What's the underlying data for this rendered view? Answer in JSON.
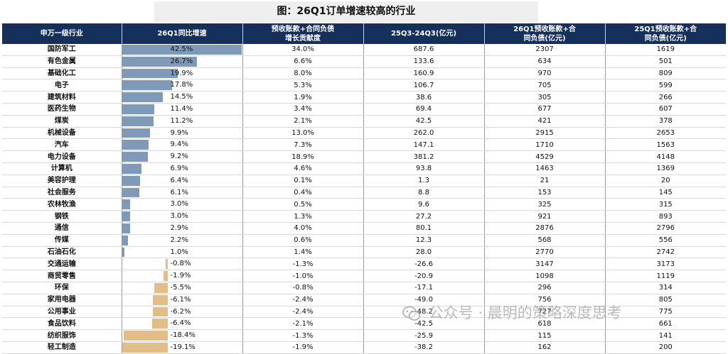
{
  "title": "图：26Q1订单增速较高的行业",
  "columns": [
    "申万一级行业",
    "26Q1同比增速",
    "预收账款+合同负债\n增长贡献度",
    "25Q3-24Q3(亿元)",
    "26Q1预收账款+合\n同负债(亿元)",
    "25Q1预收账款+合\n同负债(亿元)"
  ],
  "watermark": "公众号 · 晨明的策略深度思考",
  "colors": {
    "header_bg": "#15305a",
    "positive_bar": "#7f99b8",
    "negative_bar": "#e3bd87"
  },
  "chart_data": {
    "type": "table",
    "title": "图：26Q1订单增速较高的行业",
    "bar_column": "26Q1同比增速",
    "bar_range": [
      -19.1,
      42.5
    ],
    "rows": [
      {
        "industry": "国防军工",
        "growth": "42.5%",
        "growth_value": 42.5,
        "contribution": "34.0%",
        "diff": "687.6",
        "q1_26": "2307",
        "q1_25": "1619"
      },
      {
        "industry": "有色金属",
        "growth": "26.7%",
        "growth_value": 26.7,
        "contribution": "6.6%",
        "diff": "133.6",
        "q1_26": "634",
        "q1_25": "501"
      },
      {
        "industry": "基础化工",
        "growth": "19.9%",
        "growth_value": 19.9,
        "contribution": "8.0%",
        "diff": "160.9",
        "q1_26": "970",
        "q1_25": "809"
      },
      {
        "industry": "电子",
        "growth": "17.8%",
        "growth_value": 17.8,
        "contribution": "5.3%",
        "diff": "106.7",
        "q1_26": "705",
        "q1_25": "599"
      },
      {
        "industry": "建筑材料",
        "growth": "14.5%",
        "growth_value": 14.5,
        "contribution": "1.9%",
        "diff": "38.6",
        "q1_26": "305",
        "q1_25": "266"
      },
      {
        "industry": "医药生物",
        "growth": "11.4%",
        "growth_value": 11.4,
        "contribution": "3.4%",
        "diff": "69.4",
        "q1_26": "677",
        "q1_25": "607"
      },
      {
        "industry": "煤炭",
        "growth": "11.2%",
        "growth_value": 11.2,
        "contribution": "2.1%",
        "diff": "42.5",
        "q1_26": "421",
        "q1_25": "378"
      },
      {
        "industry": "机械设备",
        "growth": "9.9%",
        "growth_value": 9.9,
        "contribution": "13.0%",
        "diff": "262.0",
        "q1_26": "2915",
        "q1_25": "2653"
      },
      {
        "industry": "汽车",
        "growth": "9.4%",
        "growth_value": 9.4,
        "contribution": "7.3%",
        "diff": "147.1",
        "q1_26": "1710",
        "q1_25": "1563"
      },
      {
        "industry": "电力设备",
        "growth": "9.2%",
        "growth_value": 9.2,
        "contribution": "18.9%",
        "diff": "381.2",
        "q1_26": "4529",
        "q1_25": "4148"
      },
      {
        "industry": "计算机",
        "growth": "6.9%",
        "growth_value": 6.9,
        "contribution": "4.6%",
        "diff": "93.8",
        "q1_26": "1463",
        "q1_25": "1369"
      },
      {
        "industry": "美容护理",
        "growth": "6.4%",
        "growth_value": 6.4,
        "contribution": "0.1%",
        "diff": "1.3",
        "q1_26": "21",
        "q1_25": "20"
      },
      {
        "industry": "社会服务",
        "growth": "6.1%",
        "growth_value": 6.1,
        "contribution": "0.4%",
        "diff": "8.8",
        "q1_26": "153",
        "q1_25": "145"
      },
      {
        "industry": "农林牧渔",
        "growth": "3.0%",
        "growth_value": 3.0,
        "contribution": "0.5%",
        "diff": "9.6",
        "q1_26": "325",
        "q1_25": "315"
      },
      {
        "industry": "钢铁",
        "growth": "3.0%",
        "growth_value": 3.0,
        "contribution": "1.3%",
        "diff": "27.2",
        "q1_26": "921",
        "q1_25": "893"
      },
      {
        "industry": "通信",
        "growth": "2.9%",
        "growth_value": 2.9,
        "contribution": "4.0%",
        "diff": "80.1",
        "q1_26": "2876",
        "q1_25": "2796"
      },
      {
        "industry": "传媒",
        "growth": "2.2%",
        "growth_value": 2.2,
        "contribution": "0.6%",
        "diff": "12.3",
        "q1_26": "568",
        "q1_25": "556"
      },
      {
        "industry": "石油石化",
        "growth": "1.0%",
        "growth_value": 1.0,
        "contribution": "1.4%",
        "diff": "28.0",
        "q1_26": "2770",
        "q1_25": "2742"
      },
      {
        "industry": "交通运输",
        "growth": "-0.8%",
        "growth_value": -0.8,
        "contribution": "-1.3%",
        "diff": "-26.6",
        "q1_26": "3147",
        "q1_25": "3173"
      },
      {
        "industry": "商贸零售",
        "growth": "-1.9%",
        "growth_value": -1.9,
        "contribution": "-1.0%",
        "diff": "-20.9",
        "q1_26": "1098",
        "q1_25": "1119"
      },
      {
        "industry": "环保",
        "growth": "-5.5%",
        "growth_value": -5.5,
        "contribution": "-0.8%",
        "diff": "-17.1",
        "q1_26": "296",
        "q1_25": "314"
      },
      {
        "industry": "家用电器",
        "growth": "-6.1%",
        "growth_value": -6.1,
        "contribution": "-2.4%",
        "diff": "-49.0",
        "q1_26": "756",
        "q1_25": "805"
      },
      {
        "industry": "公用事业",
        "growth": "-6.2%",
        "growth_value": -6.2,
        "contribution": "-2.4%",
        "diff": "-48.2",
        "q1_26": "727",
        "q1_25": "775"
      },
      {
        "industry": "食品饮料",
        "growth": "-6.4%",
        "growth_value": -6.4,
        "contribution": "-2.1%",
        "diff": "-42.5",
        "q1_26": "618",
        "q1_25": "661"
      },
      {
        "industry": "纺织服饰",
        "growth": "-18.4%",
        "growth_value": -18.4,
        "contribution": "-1.3%",
        "diff": "-25.9",
        "q1_26": "115",
        "q1_25": "141"
      },
      {
        "industry": "轻工制造",
        "growth": "-19.1%",
        "growth_value": -19.1,
        "contribution": "-1.9%",
        "diff": "-38.2",
        "q1_26": "162",
        "q1_25": "200"
      }
    ]
  }
}
